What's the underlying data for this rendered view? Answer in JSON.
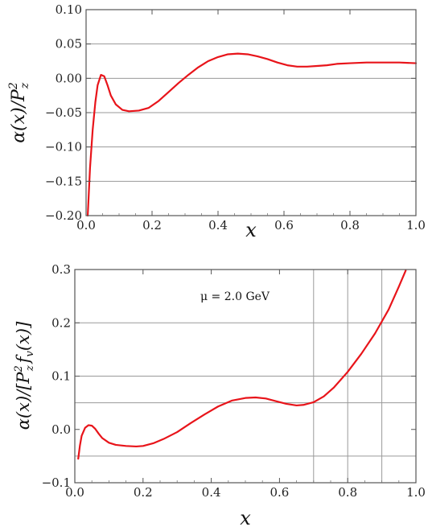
{
  "chart_data": [
    {
      "type": "line",
      "xlabel": "x",
      "ylabel": "α(x)/P_z^2",
      "xlim": [
        0.0,
        1.0
      ],
      "ylim": [
        -0.2,
        0.1
      ],
      "x_ticks": [
        0.0,
        0.2,
        0.4,
        0.6,
        0.8,
        1.0
      ],
      "x_tick_labels": [
        "0.0",
        "0.2",
        "0.4",
        "0.6",
        "0.8",
        "1.0"
      ],
      "y_ticks": [
        -0.2,
        -0.15,
        -0.1,
        -0.05,
        0.0,
        0.05,
        0.1
      ],
      "y_tick_labels": [
        "−0.20",
        "−0.15",
        "−0.10",
        "−0.05",
        "0.00",
        "0.05",
        "0.10"
      ],
      "grid": "horizontal lines at each y tick, vertical line at x = 0.0",
      "series": [
        {
          "color": "#e8141a",
          "x": [
            0.005,
            0.012,
            0.02,
            0.028,
            0.035,
            0.045,
            0.055,
            0.065,
            0.075,
            0.09,
            0.11,
            0.13,
            0.16,
            0.19,
            0.22,
            0.25,
            0.28,
            0.31,
            0.34,
            0.37,
            0.4,
            0.43,
            0.46,
            0.49,
            0.52,
            0.55,
            0.58,
            0.61,
            0.64,
            0.67,
            0.7,
            0.73,
            0.76,
            0.8,
            0.85,
            0.9,
            0.95,
            1.0
          ],
          "y": [
            -0.2,
            -0.13,
            -0.075,
            -0.035,
            -0.01,
            0.005,
            0.003,
            -0.01,
            -0.025,
            -0.038,
            -0.046,
            -0.048,
            -0.047,
            -0.043,
            -0.033,
            -0.02,
            -0.007,
            0.005,
            0.016,
            0.025,
            0.031,
            0.035,
            0.036,
            0.035,
            0.032,
            0.028,
            0.023,
            0.019,
            0.017,
            0.017,
            0.018,
            0.019,
            0.021,
            0.022,
            0.023,
            0.023,
            0.023,
            0.022
          ]
        }
      ]
    },
    {
      "type": "line",
      "xlabel": "x",
      "ylabel": "α(x)/[P_z^2 f_v(x)]",
      "xlim": [
        0.0,
        1.0
      ],
      "ylim": [
        -0.1,
        0.3
      ],
      "x_ticks": [
        0.0,
        0.2,
        0.4,
        0.6,
        0.8,
        1.0
      ],
      "x_tick_labels": [
        "0.0",
        "0.2",
        "0.4",
        "0.6",
        "0.8",
        "1.0"
      ],
      "y_ticks": [
        -0.1,
        0.0,
        0.1,
        0.2,
        0.3
      ],
      "y_tick_labels": [
        "−0.1",
        "0.0",
        "0.1",
        "0.2",
        "0.3"
      ],
      "grid": "horizontal lines at y = -0.05, 0.05, 0.1, 0.2; vertical lines at x = 0.7, 0.8, 0.9",
      "grid_h": [
        -0.05,
        0.05,
        0.1,
        0.2
      ],
      "grid_v": [
        0.7,
        0.8,
        0.9
      ],
      "annotation": "μ = 2.0 GeV",
      "series": [
        {
          "color": "#e8141a",
          "x": [
            0.01,
            0.015,
            0.02,
            0.03,
            0.04,
            0.05,
            0.06,
            0.07,
            0.08,
            0.1,
            0.12,
            0.15,
            0.18,
            0.2,
            0.23,
            0.26,
            0.3,
            0.34,
            0.38,
            0.42,
            0.46,
            0.5,
            0.53,
            0.56,
            0.59,
            0.62,
            0.65,
            0.67,
            0.7,
            0.73,
            0.76,
            0.8,
            0.84,
            0.88,
            0.92,
            0.95,
            0.97
          ],
          "y": [
            -0.055,
            -0.03,
            -0.012,
            0.003,
            0.008,
            0.007,
            0.001,
            -0.008,
            -0.016,
            -0.025,
            -0.029,
            -0.031,
            -0.032,
            -0.031,
            -0.026,
            -0.018,
            -0.005,
            0.012,
            0.028,
            0.043,
            0.054,
            0.059,
            0.06,
            0.058,
            0.053,
            0.048,
            0.045,
            0.046,
            0.051,
            0.062,
            0.079,
            0.108,
            0.142,
            0.18,
            0.225,
            0.268,
            0.298
          ]
        }
      ]
    }
  ]
}
